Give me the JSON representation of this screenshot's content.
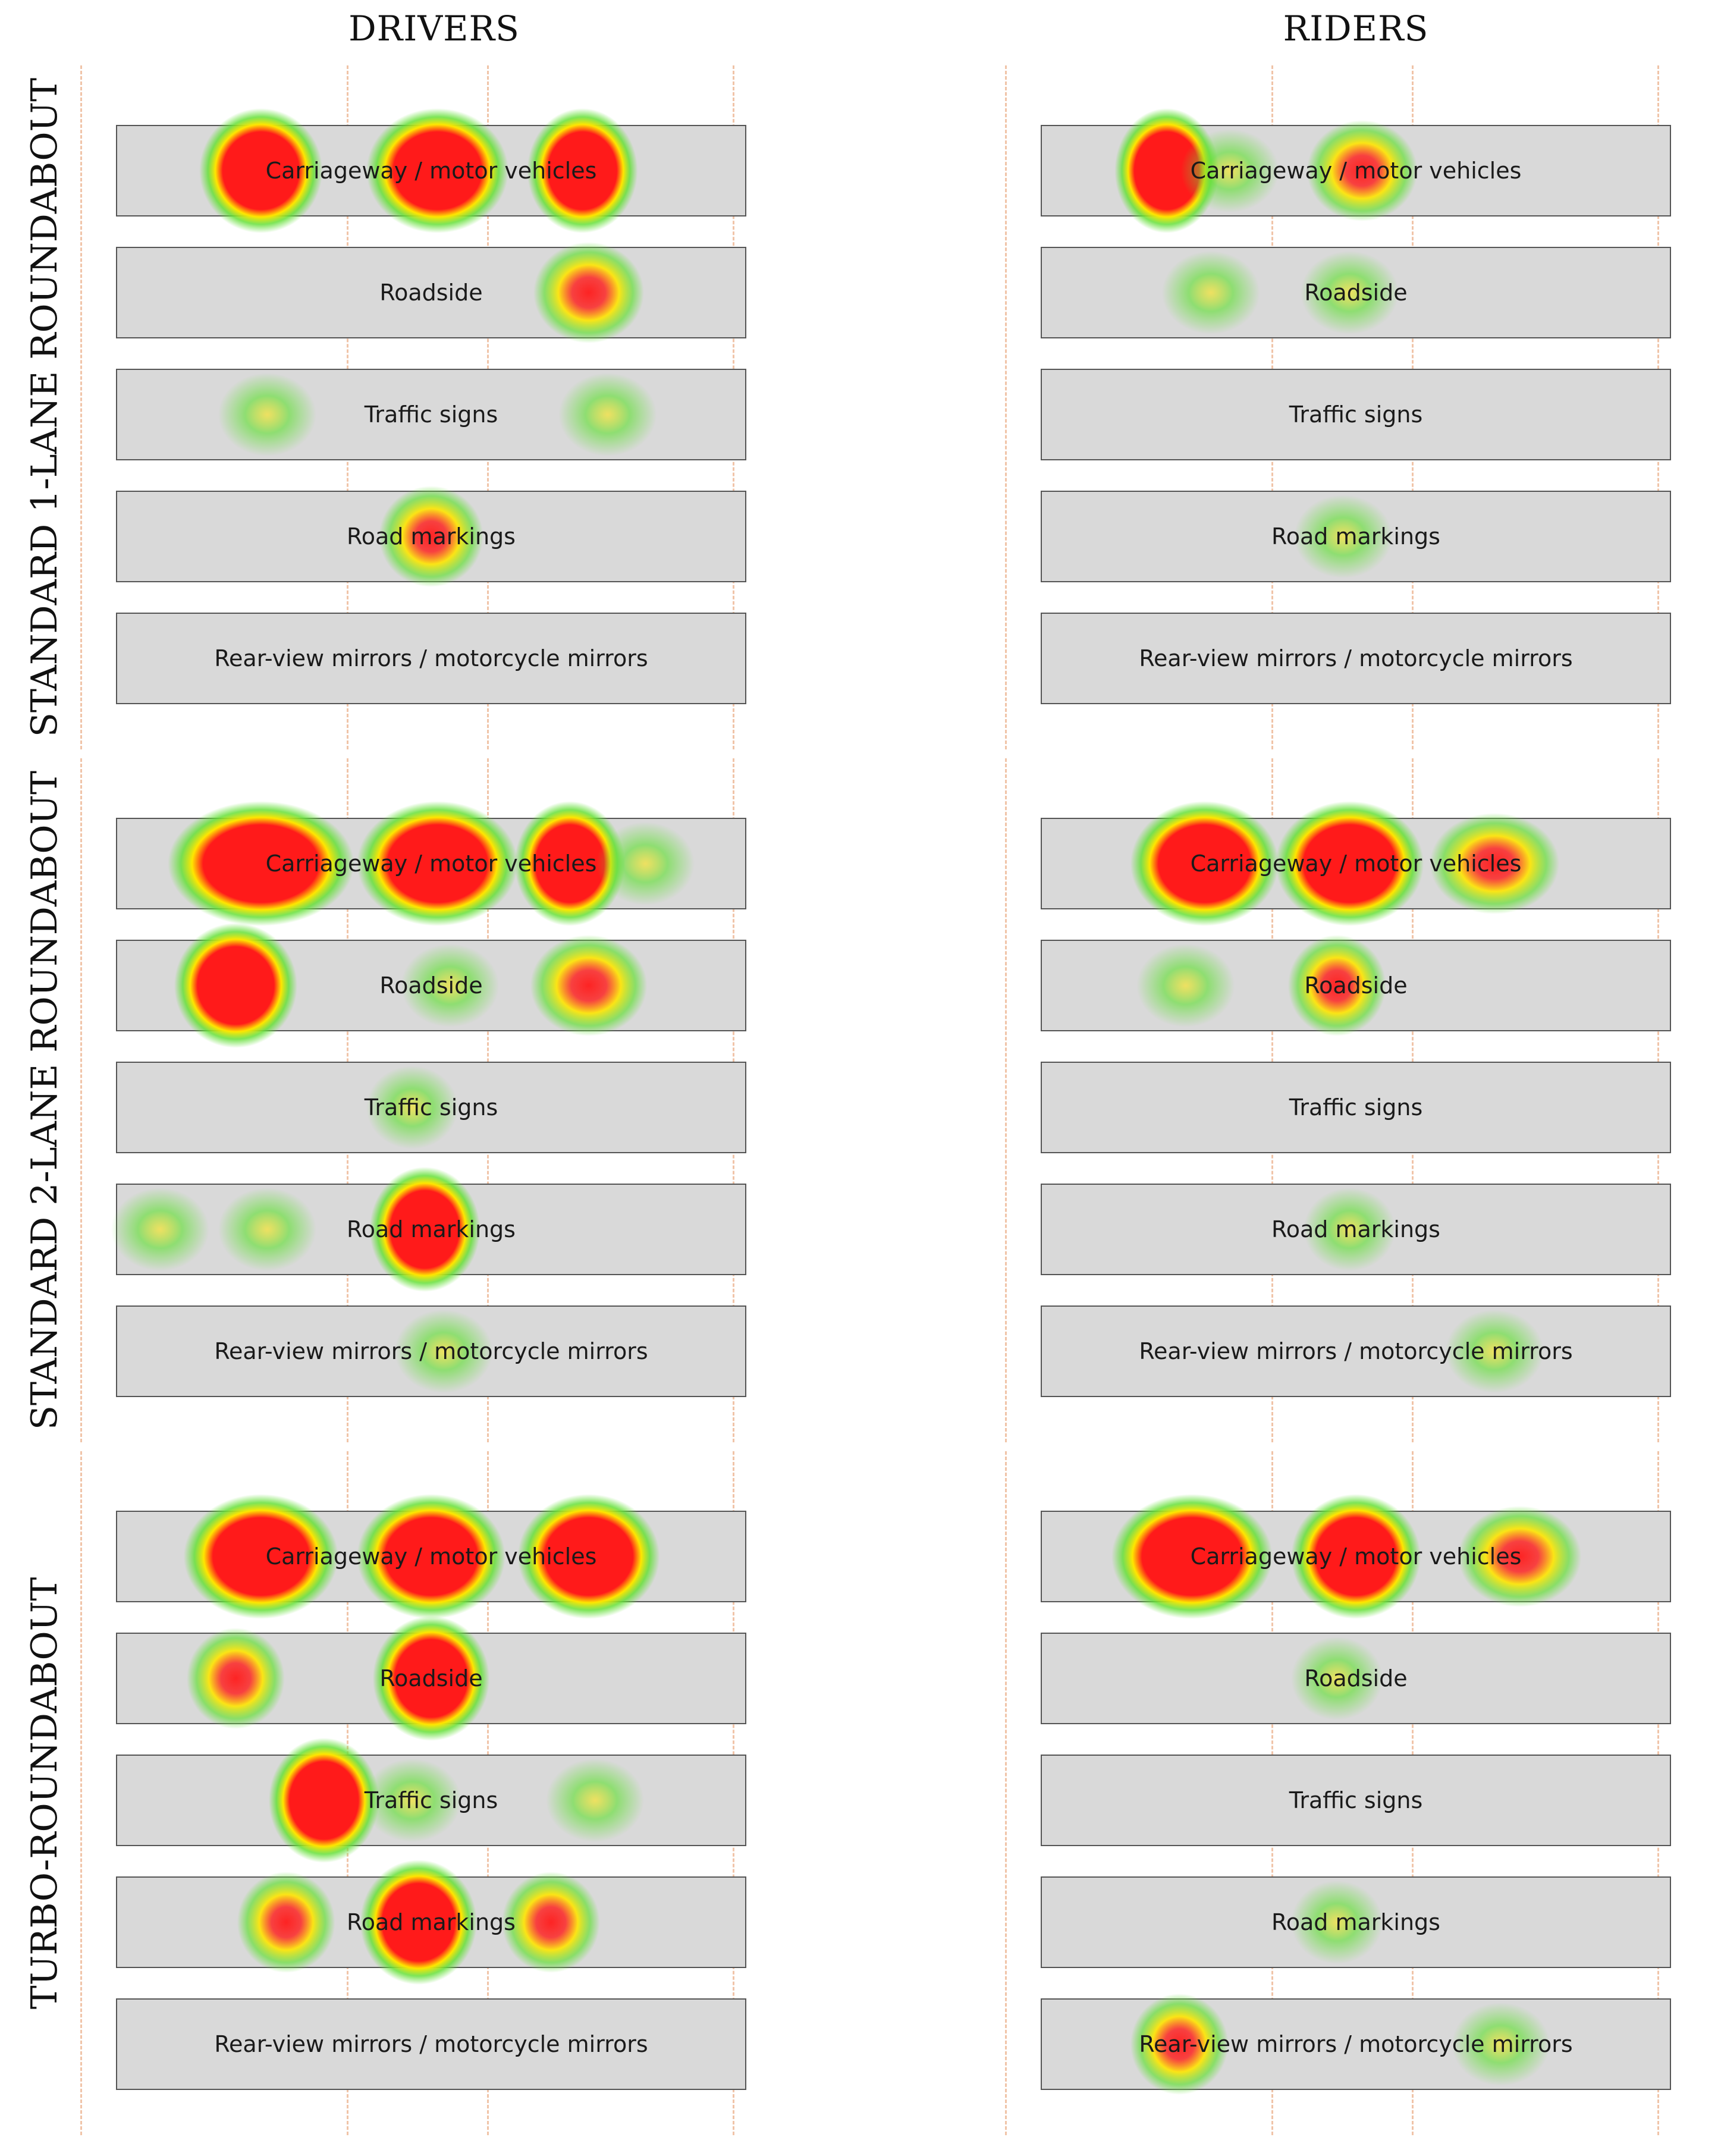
{
  "columns": {
    "drivers": "DRIVERS",
    "riders": "RIDERS"
  },
  "rows": [
    {
      "label": "STANDARD 1-LANE ROUNDABOUT"
    },
    {
      "label": "STANDARD 2-LANE ROUNDABOUT"
    },
    {
      "label": "TURBO-ROUNDABOUT"
    }
  ],
  "categories": [
    "Carriageway / motor vehicles",
    "Roadside",
    "Traffic signs",
    "Road markings",
    "Rear-view mirrors / motorcycle mirrors"
  ],
  "heat_colors": {
    "high": "#ff1a1a",
    "mid": "#ffe600",
    "low": "#66e03a"
  },
  "heatmaps": {
    "drivers_1lane": [
      {
        "cat": 0,
        "x": 0.23,
        "w": 0.12,
        "i": 1.0
      },
      {
        "cat": 0,
        "x": 0.51,
        "w": 0.15,
        "i": 1.0
      },
      {
        "cat": 0,
        "x": 0.74,
        "w": 0.1,
        "i": 0.85
      },
      {
        "cat": 1,
        "x": 0.75,
        "w": 0.1,
        "i": 0.7
      },
      {
        "cat": 2,
        "x": 0.24,
        "w": 0.08,
        "i": 0.3
      },
      {
        "cat": 2,
        "x": 0.78,
        "w": 0.08,
        "i": 0.3
      },
      {
        "cat": 3,
        "x": 0.5,
        "w": 0.09,
        "i": 0.6
      }
    ],
    "riders_1lane": [
      {
        "cat": 0,
        "x": 0.2,
        "w": 0.09,
        "i": 1.0
      },
      {
        "cat": 0,
        "x": 0.3,
        "w": 0.08,
        "i": 0.3
      },
      {
        "cat": 0,
        "x": 0.51,
        "w": 0.1,
        "i": 0.55
      },
      {
        "cat": 1,
        "x": 0.27,
        "w": 0.08,
        "i": 0.3
      },
      {
        "cat": 1,
        "x": 0.49,
        "w": 0.08,
        "i": 0.3
      },
      {
        "cat": 3,
        "x": 0.48,
        "w": 0.08,
        "i": 0.3
      }
    ],
    "drivers_2lane": [
      {
        "cat": 0,
        "x": 0.23,
        "w": 0.22,
        "i": 1.0
      },
      {
        "cat": 0,
        "x": 0.51,
        "w": 0.18,
        "i": 1.0
      },
      {
        "cat": 0,
        "x": 0.72,
        "w": 0.1,
        "i": 0.85
      },
      {
        "cat": 0,
        "x": 0.84,
        "w": 0.08,
        "i": 0.3
      },
      {
        "cat": 1,
        "x": 0.19,
        "w": 0.12,
        "i": 0.9
      },
      {
        "cat": 1,
        "x": 0.53,
        "w": 0.08,
        "i": 0.3
      },
      {
        "cat": 1,
        "x": 0.75,
        "w": 0.11,
        "i": 0.55
      },
      {
        "cat": 2,
        "x": 0.47,
        "w": 0.07,
        "i": 0.3
      },
      {
        "cat": 3,
        "x": 0.07,
        "w": 0.08,
        "i": 0.45
      },
      {
        "cat": 3,
        "x": 0.24,
        "w": 0.08,
        "i": 0.45
      },
      {
        "cat": 3,
        "x": 0.49,
        "w": 0.1,
        "i": 1.0
      },
      {
        "cat": 4,
        "x": 0.52,
        "w": 0.08,
        "i": 0.3
      }
    ],
    "riders_2lane": [
      {
        "cat": 0,
        "x": 0.26,
        "w": 0.16,
        "i": 1.0
      },
      {
        "cat": 0,
        "x": 0.49,
        "w": 0.16,
        "i": 1.0
      },
      {
        "cat": 0,
        "x": 0.72,
        "w": 0.13,
        "i": 0.75
      },
      {
        "cat": 1,
        "x": 0.23,
        "w": 0.08,
        "i": 0.3
      },
      {
        "cat": 1,
        "x": 0.47,
        "w": 0.08,
        "i": 0.7
      },
      {
        "cat": 3,
        "x": 0.49,
        "w": 0.07,
        "i": 0.3
      },
      {
        "cat": 4,
        "x": 0.72,
        "w": 0.08,
        "i": 0.3
      }
    ],
    "drivers_turbo": [
      {
        "cat": 0,
        "x": 0.23,
        "w": 0.17,
        "i": 1.0
      },
      {
        "cat": 0,
        "x": 0.5,
        "w": 0.16,
        "i": 1.0
      },
      {
        "cat": 0,
        "x": 0.75,
        "w": 0.15,
        "i": 1.0
      },
      {
        "cat": 1,
        "x": 0.19,
        "w": 0.08,
        "i": 0.7
      },
      {
        "cat": 1,
        "x": 0.5,
        "w": 0.11,
        "i": 0.9
      },
      {
        "cat": 2,
        "x": 0.33,
        "w": 0.1,
        "i": 0.85
      },
      {
        "cat": 2,
        "x": 0.47,
        "w": 0.08,
        "i": 0.35
      },
      {
        "cat": 2,
        "x": 0.76,
        "w": 0.08,
        "i": 0.3
      },
      {
        "cat": 3,
        "x": 0.27,
        "w": 0.08,
        "i": 0.7
      },
      {
        "cat": 3,
        "x": 0.48,
        "w": 0.11,
        "i": 0.8
      },
      {
        "cat": 3,
        "x": 0.69,
        "w": 0.08,
        "i": 0.7
      }
    ],
    "riders_turbo": [
      {
        "cat": 0,
        "x": 0.24,
        "w": 0.18,
        "i": 1.0
      },
      {
        "cat": 0,
        "x": 0.5,
        "w": 0.13,
        "i": 1.0
      },
      {
        "cat": 0,
        "x": 0.76,
        "w": 0.12,
        "i": 0.55
      },
      {
        "cat": 1,
        "x": 0.47,
        "w": 0.07,
        "i": 0.3
      },
      {
        "cat": 3,
        "x": 0.47,
        "w": 0.07,
        "i": 0.3
      },
      {
        "cat": 4,
        "x": 0.22,
        "w": 0.08,
        "i": 0.5
      },
      {
        "cat": 4,
        "x": 0.73,
        "w": 0.08,
        "i": 0.3
      }
    ]
  }
}
